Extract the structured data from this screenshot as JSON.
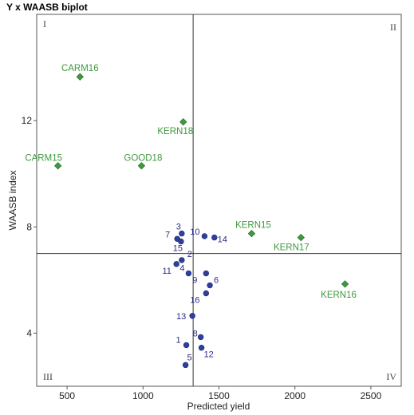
{
  "chart_data": {
    "type": "scatter",
    "title": "Y x WAASB biplot",
    "xlabel": "Predicted yield",
    "ylabel": "WAASB index",
    "xlim": [
      300,
      2700
    ],
    "ylim": [
      2,
      16
    ],
    "xticks": [
      500,
      1000,
      1500,
      2000,
      2500
    ],
    "yticks": [
      4,
      8,
      12
    ],
    "grid": false,
    "reference_lines": {
      "x": 1330,
      "y": 7.0
    },
    "quadrants": [
      "I",
      "II",
      "III",
      "IV"
    ],
    "colors": {
      "environment": "#3e9a3e",
      "genotype": "#2e3f9e",
      "genotype_label": "#2b2b8a"
    },
    "environments": [
      {
        "label": "CARM16",
        "x": 585,
        "y": 13.65
      },
      {
        "label": "KERN18",
        "x": 1265,
        "y": 11.95
      },
      {
        "label": "CARM15",
        "x": 440,
        "y": 10.3
      },
      {
        "label": "GOOD18",
        "x": 990,
        "y": 10.3
      },
      {
        "label": "KERN15",
        "x": 1715,
        "y": 7.75
      },
      {
        "label": "KERN17",
        "x": 2040,
        "y": 7.6
      },
      {
        "label": "KERN16",
        "x": 2330,
        "y": 5.85
      }
    ],
    "genotypes": [
      {
        "label": "3",
        "x": 1255,
        "y": 7.75
      },
      {
        "label": "7",
        "x": 1225,
        "y": 7.55
      },
      {
        "label": "15",
        "x": 1250,
        "y": 7.45
      },
      {
        "label": "10",
        "x": 1405,
        "y": 7.65
      },
      {
        "label": "14",
        "x": 1470,
        "y": 7.6
      },
      {
        "label": "11",
        "x": 1220,
        "y": 6.6
      },
      {
        "label": "2",
        "x": 1255,
        "y": 6.75
      },
      {
        "label": "4",
        "x": 1300,
        "y": 6.25
      },
      {
        "label": "9",
        "x": 1415,
        "y": 6.25
      },
      {
        "label": "6",
        "x": 1440,
        "y": 5.8
      },
      {
        "label": "16",
        "x": 1415,
        "y": 5.5
      },
      {
        "label": "13",
        "x": 1325,
        "y": 4.65
      },
      {
        "label": "8",
        "x": 1380,
        "y": 3.85
      },
      {
        "label": "1",
        "x": 1285,
        "y": 3.55
      },
      {
        "label": "12",
        "x": 1385,
        "y": 3.45
      },
      {
        "label": "5",
        "x": 1280,
        "y": 2.8
      }
    ]
  }
}
